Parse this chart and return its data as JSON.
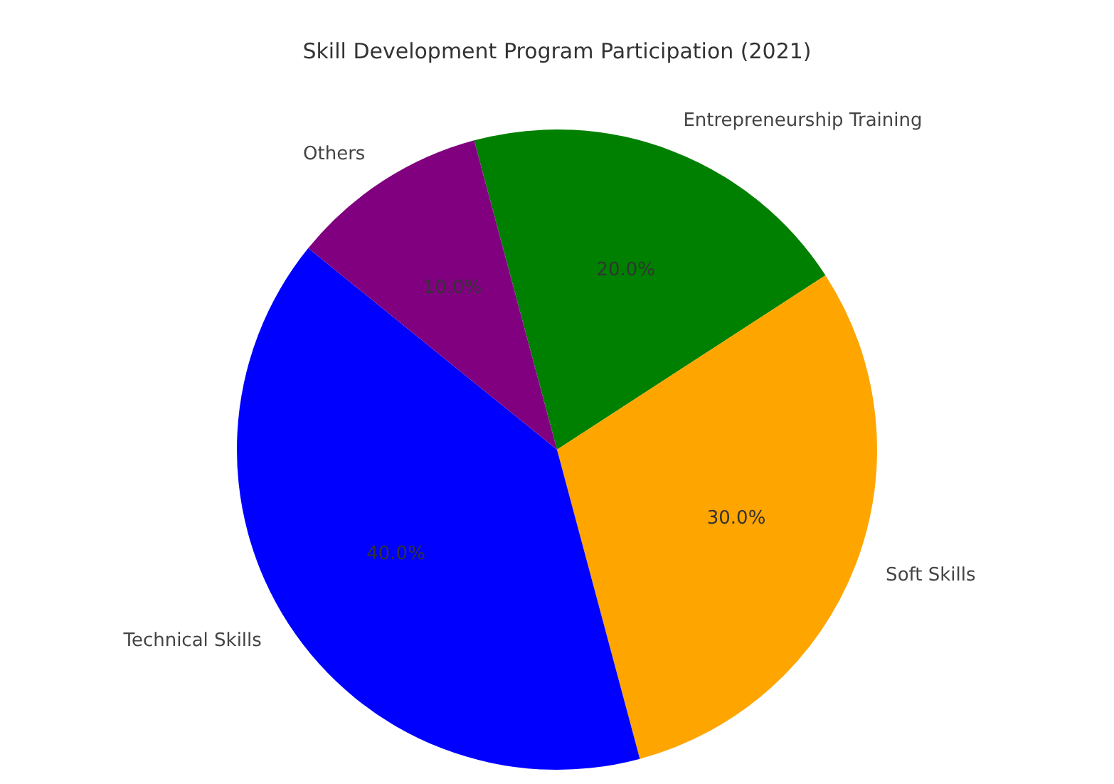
{
  "chart_data": {
    "type": "pie",
    "title": "Skill Development Program Participation (2021)",
    "categories": [
      "Entrepreneurship Training",
      "Soft Skills",
      "Technical Skills",
      "Others"
    ],
    "values": [
      20,
      30,
      40,
      10
    ],
    "colors": [
      "#008000",
      "#ffa500",
      "#0000ff",
      "#800080"
    ],
    "value_labels": [
      "20.0%",
      "30.0%",
      "40.0%",
      "10.0%"
    ],
    "legend": false
  }
}
